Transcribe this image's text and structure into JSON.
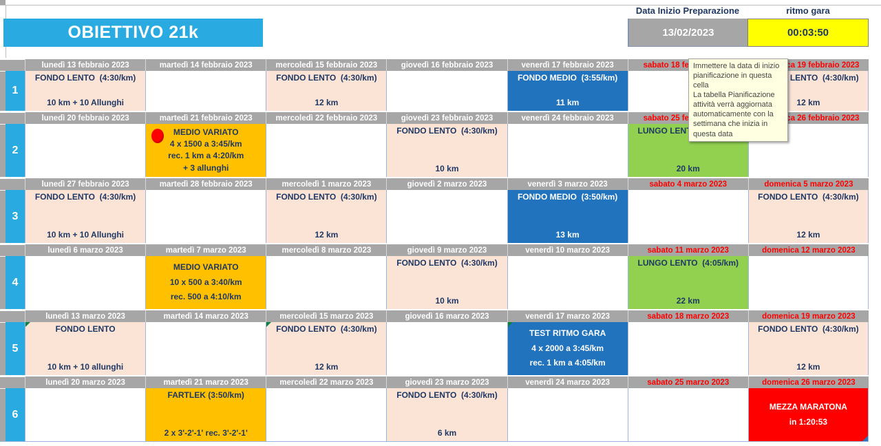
{
  "header": {
    "title": "OBIETTIVO 21k",
    "data_inizio_label": "Data Inizio Preparazione",
    "data_inizio_value": "13/02/2023",
    "ritmo_gara_label": "ritmo gara",
    "ritmo_gara_value": "00:03:50"
  },
  "tooltip": {
    "text": "Immettere la data di inizio pianificazione in questa cella\nLa tabella Pianificazione attività verrà aggiornata automaticamente con la settimana che inizia in questa data"
  },
  "colors": {
    "title_blue": "#29abe2",
    "week_blue": "#29abe2",
    "header_gray": "#a6a6a6",
    "weekend_red": "#ff0000",
    "value_gray": "#a6a6a6",
    "value_yellow": "#ffff00",
    "peach": "#fbe3d6",
    "blue": "#2173be",
    "orange": "#ffc000",
    "green": "#92d050",
    "red": "#ff0000",
    "navy_text": "#1f3864"
  },
  "weeks": [
    {
      "number": "1",
      "days": [
        {
          "date": "lunedì 13 febbraio 2023",
          "weekend": false,
          "activity": {
            "style": "peach",
            "layout": "split",
            "lines": [
              "FONDO LENTO  (4:30/km)",
              "10 km + 10 Allunghi"
            ]
          }
        },
        {
          "date": "martedì 14 febbraio 2023",
          "weekend": false,
          "activity": null
        },
        {
          "date": "mercoledì 15 febbraio 2023",
          "weekend": false,
          "activity": {
            "style": "peach",
            "layout": "split",
            "lines": [
              "FONDO LENTO  (4:30/km)",
              "12 km"
            ]
          }
        },
        {
          "date": "giovedì 16 febbraio 2023",
          "weekend": false,
          "activity": null
        },
        {
          "date": "venerdì 17 febbraio 2023",
          "weekend": false,
          "activity": {
            "style": "blue",
            "layout": "split",
            "lines": [
              "FONDO MEDIO  (3:55/km)",
              "11 km"
            ]
          }
        },
        {
          "date": "sabato 18 febbraio 2023",
          "weekend": true,
          "activity": null
        },
        {
          "date": "domenica 19 febbraio 2023",
          "weekend": true,
          "activity": {
            "style": "peach",
            "layout": "split",
            "lines": [
              "FONDO LENTO  (4:30/km)",
              "12 km"
            ]
          }
        }
      ]
    },
    {
      "number": "2",
      "days": [
        {
          "date": "lunedì 20 febbraio 2023",
          "weekend": false,
          "activity": null
        },
        {
          "date": "martedì 21 febbraio 2023",
          "weekend": false,
          "activity": {
            "style": "orange",
            "layout": "spread",
            "marker": "red-dot",
            "lines": [
              "MEDIO VARIATO",
              "4 x 1500 a 3:45/km",
              "rec. 1 km a 4:20/km",
              "+ 3 allunghi"
            ]
          }
        },
        {
          "date": "mercoledì 22 febbraio 2023",
          "weekend": false,
          "activity": null
        },
        {
          "date": "giovedì 23 febbraio 2023",
          "weekend": false,
          "activity": {
            "style": "peach",
            "layout": "split",
            "lines": [
              "FONDO LENTO  (4:30/km)",
              "10 km"
            ]
          }
        },
        {
          "date": "venerdì 24 febbraio 2023",
          "weekend": false,
          "activity": null
        },
        {
          "date": "sabato 25 febbraio 2023",
          "weekend": true,
          "activity": {
            "style": "green",
            "layout": "split",
            "lines": [
              "LUNGO LENTO  (4:10/km)",
              "20 km"
            ]
          }
        },
        {
          "date": "domenica 26 febbraio 2023",
          "weekend": true,
          "activity": null
        }
      ]
    },
    {
      "number": "3",
      "days": [
        {
          "date": "lunedì 27 febbraio 2023",
          "weekend": false,
          "activity": {
            "style": "peach",
            "layout": "split",
            "lines": [
              "FONDO LENTO  (4:30/km)",
              "10 km + 10 Allunghi"
            ]
          }
        },
        {
          "date": "martedì 28 febbraio 2023",
          "weekend": false,
          "activity": null
        },
        {
          "date": "mercoledì 1 marzo 2023",
          "weekend": false,
          "activity": {
            "style": "peach",
            "layout": "split",
            "lines": [
              "FONDO LENTO  (4:30/km)",
              "12 km"
            ]
          }
        },
        {
          "date": "giovedì 2 marzo 2023",
          "weekend": false,
          "activity": null
        },
        {
          "date": "venerdì 3 marzo 2023",
          "weekend": false,
          "activity": {
            "style": "blue",
            "layout": "split",
            "lines": [
              "FONDO MEDIO  (3:50/km)",
              "13 km"
            ]
          }
        },
        {
          "date": "sabato 4 marzo 2023",
          "weekend": true,
          "activity": null
        },
        {
          "date": "domenica 5 marzo 2023",
          "weekend": true,
          "activity": {
            "style": "peach",
            "layout": "split",
            "lines": [
              "FONDO LENTO  (4:30/km)",
              "12 km"
            ]
          }
        }
      ]
    },
    {
      "number": "4",
      "days": [
        {
          "date": "lunedì 6 marzo 2023",
          "weekend": false,
          "activity": null
        },
        {
          "date": "martedì 7 marzo 2023",
          "weekend": false,
          "activity": {
            "style": "orange",
            "layout": "spread",
            "lines": [
              "MEDIO VARIATO",
              "10 x 500 a 3:40/km",
              "rec. 500 a 4:10/km"
            ]
          }
        },
        {
          "date": "mercoledì 8 marzo 2023",
          "weekend": false,
          "activity": null
        },
        {
          "date": "giovedì 9 marzo 2023",
          "weekend": false,
          "activity": {
            "style": "peach",
            "layout": "split",
            "lines": [
              "FONDO LENTO  (4:30/km)",
              "10 km"
            ]
          }
        },
        {
          "date": "venerdì 10 marzo 2023",
          "weekend": false,
          "activity": null
        },
        {
          "date": "sabato 11 marzo 2023",
          "weekend": true,
          "activity": {
            "style": "green",
            "layout": "split",
            "lines": [
              "LUNGO LENTO  (4:05/km)",
              "22 km"
            ]
          }
        },
        {
          "date": "domenica 12 marzo 2023",
          "weekend": true,
          "activity": null
        }
      ]
    },
    {
      "number": "5",
      "days": [
        {
          "date": "lunedì 13 marzo 2023",
          "weekend": false,
          "activity": {
            "style": "peach",
            "layout": "split",
            "marker": "comment",
            "lines": [
              "FONDO LENTO",
              "10 km + 10 allunghi"
            ]
          }
        },
        {
          "date": "martedì 14 marzo 2023",
          "weekend": false,
          "activity": null
        },
        {
          "date": "mercoledì 15 marzo 2023",
          "weekend": false,
          "activity": {
            "style": "peach",
            "layout": "split",
            "marker": "comment",
            "lines": [
              "FONDO LENTO  (4:30/km)",
              "12 km"
            ]
          }
        },
        {
          "date": "giovedì 16 marzo 2023",
          "weekend": false,
          "activity": null
        },
        {
          "date": "venerdì 17 marzo 2023",
          "weekend": false,
          "activity": {
            "style": "blue",
            "layout": "spread",
            "marker": "comment",
            "lines": [
              "TEST RITMO GARA",
              "4 x 2000 a 3:45/km",
              "rec. 1 km a 4:05/km"
            ]
          }
        },
        {
          "date": "sabato 18 marzo 2023",
          "weekend": true,
          "activity": null
        },
        {
          "date": "domenica 19 marzo 2023",
          "weekend": true,
          "activity": {
            "style": "peach",
            "layout": "split",
            "lines": [
              "FONDO LENTO  (4:30/km)",
              "12 km"
            ]
          }
        }
      ]
    },
    {
      "number": "6",
      "days": [
        {
          "date": "lunedì 20 marzo 2023",
          "weekend": false,
          "activity": null
        },
        {
          "date": "martedì 21 marzo 2023",
          "weekend": false,
          "activity": {
            "style": "orange",
            "layout": "split",
            "lines": [
              "FARTLEK (3:50/km)",
              "2 x 3'-2'-1' rec. 3'-2'-1'"
            ]
          }
        },
        {
          "date": "mercoledì 22 marzo 2023",
          "weekend": false,
          "activity": null
        },
        {
          "date": "giovedì 23 marzo 2023",
          "weekend": false,
          "activity": {
            "style": "peach",
            "layout": "split",
            "lines": [
              "FONDO LENTO  (4:30/km)",
              "6 km"
            ]
          }
        },
        {
          "date": "venerdì 24 marzo 2023",
          "weekend": false,
          "activity": null
        },
        {
          "date": "sabato 25 marzo 2023",
          "weekend": true,
          "activity": null
        },
        {
          "date": "domenica 26 marzo 2023",
          "weekend": true,
          "activity": {
            "style": "red",
            "layout": "center",
            "corner": "blue",
            "lines": [
              "MEZZA MARATONA",
              "in 1:20:53"
            ]
          }
        }
      ]
    }
  ]
}
